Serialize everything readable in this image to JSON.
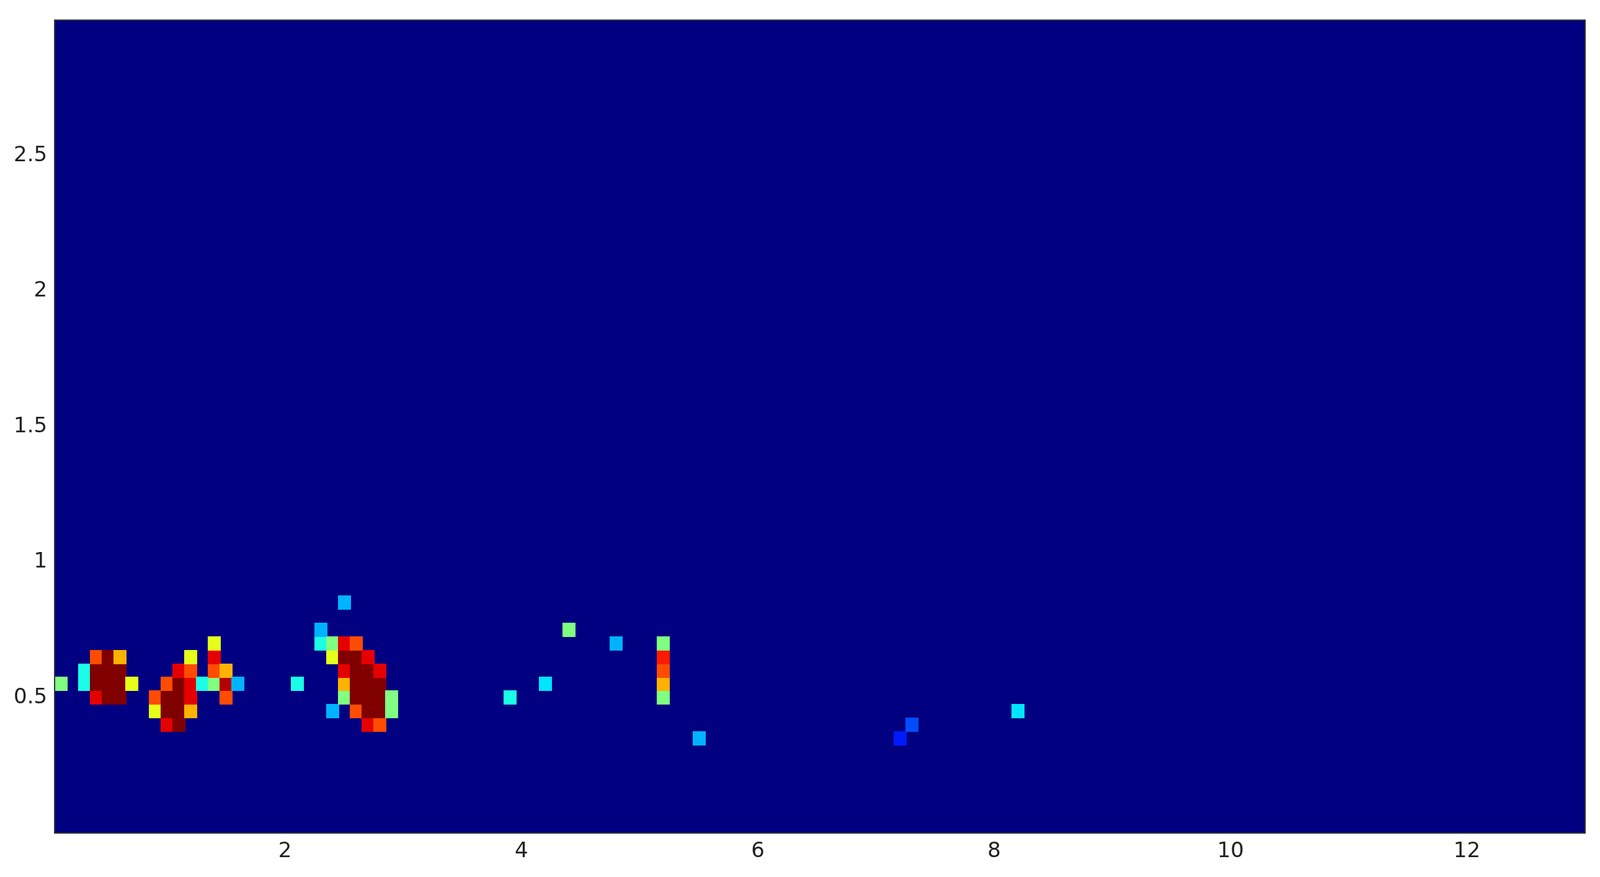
{
  "chart_data": {
    "type": "heatmap",
    "xlim": [
      0.05,
      13
    ],
    "xticks": [
      2,
      4,
      6,
      8,
      10,
      12
    ],
    "ylim": [
      0,
      3
    ],
    "yticks": [
      0.5,
      1,
      1.5,
      2,
      2.5
    ],
    "zlim": [
      0,
      1
    ],
    "cell_width": 0.1,
    "cell_height": 0.05,
    "grid": false,
    "cells": [
      [
        0.1,
        0.55,
        0.5
      ],
      [
        0.3,
        0.55,
        0.4
      ],
      [
        0.3,
        0.6,
        0.4
      ],
      [
        0.4,
        0.5,
        0.9
      ],
      [
        0.4,
        0.55,
        1
      ],
      [
        0.4,
        0.6,
        1
      ],
      [
        0.4,
        0.65,
        0.8
      ],
      [
        0.5,
        0.5,
        1
      ],
      [
        0.5,
        0.55,
        1
      ],
      [
        0.5,
        0.6,
        1
      ],
      [
        0.5,
        0.65,
        1
      ],
      [
        0.6,
        0.5,
        1
      ],
      [
        0.6,
        0.55,
        1
      ],
      [
        0.6,
        0.6,
        1
      ],
      [
        0.6,
        0.65,
        0.7
      ],
      [
        0.7,
        0.55,
        0.6
      ],
      [
        0.9,
        0.45,
        0.6
      ],
      [
        0.9,
        0.5,
        0.8
      ],
      [
        1.0,
        0.4,
        0.9
      ],
      [
        1.0,
        0.45,
        1
      ],
      [
        1.0,
        0.5,
        1
      ],
      [
        1.0,
        0.55,
        0.8
      ],
      [
        1.1,
        0.4,
        1
      ],
      [
        1.1,
        0.45,
        1
      ],
      [
        1.1,
        0.5,
        1
      ],
      [
        1.1,
        0.55,
        1
      ],
      [
        1.1,
        0.6,
        0.9
      ],
      [
        1.2,
        0.45,
        0.7
      ],
      [
        1.2,
        0.5,
        0.9
      ],
      [
        1.2,
        0.55,
        0.9
      ],
      [
        1.2,
        0.6,
        0.8
      ],
      [
        1.2,
        0.65,
        0.6
      ],
      [
        1.3,
        0.55,
        0.4
      ],
      [
        1.4,
        0.55,
        0.5
      ],
      [
        1.4,
        0.6,
        0.8
      ],
      [
        1.4,
        0.65,
        0.9
      ],
      [
        1.4,
        0.7,
        0.6
      ],
      [
        1.5,
        0.5,
        0.8
      ],
      [
        1.5,
        0.55,
        0.95
      ],
      [
        1.5,
        0.6,
        0.7
      ],
      [
        1.6,
        0.55,
        0.3
      ],
      [
        2.1,
        0.55,
        0.4
      ],
      [
        2.3,
        0.7,
        0.4
      ],
      [
        2.3,
        0.75,
        0.3
      ],
      [
        2.4,
        0.45,
        0.3
      ],
      [
        2.4,
        0.65,
        0.6
      ],
      [
        2.4,
        0.7,
        0.5
      ],
      [
        2.5,
        0.5,
        0.5
      ],
      [
        2.5,
        0.55,
        0.7
      ],
      [
        2.5,
        0.6,
        0.9
      ],
      [
        2.5,
        0.65,
        1
      ],
      [
        2.5,
        0.7,
        0.9
      ],
      [
        2.5,
        0.85,
        0.3
      ],
      [
        2.6,
        0.45,
        0.8
      ],
      [
        2.6,
        0.5,
        1
      ],
      [
        2.6,
        0.55,
        1
      ],
      [
        2.6,
        0.6,
        1
      ],
      [
        2.6,
        0.65,
        1
      ],
      [
        2.6,
        0.7,
        0.8
      ],
      [
        2.7,
        0.4,
        0.9
      ],
      [
        2.7,
        0.45,
        1
      ],
      [
        2.7,
        0.5,
        1
      ],
      [
        2.7,
        0.55,
        1
      ],
      [
        2.7,
        0.6,
        1
      ],
      [
        2.7,
        0.65,
        0.9
      ],
      [
        2.8,
        0.4,
        0.8
      ],
      [
        2.8,
        0.45,
        1
      ],
      [
        2.8,
        0.5,
        1
      ],
      [
        2.8,
        0.55,
        1
      ],
      [
        2.8,
        0.6,
        0.9
      ],
      [
        2.9,
        0.45,
        0.5
      ],
      [
        2.9,
        0.5,
        0.5
      ],
      [
        3.9,
        0.5,
        0.4
      ],
      [
        4.2,
        0.55,
        0.35
      ],
      [
        4.4,
        0.75,
        0.5
      ],
      [
        4.8,
        0.7,
        0.3
      ],
      [
        5.2,
        0.5,
        0.5
      ],
      [
        5.2,
        0.55,
        0.7
      ],
      [
        5.2,
        0.6,
        0.8
      ],
      [
        5.2,
        0.65,
        0.85
      ],
      [
        5.2,
        0.7,
        0.5
      ],
      [
        5.5,
        0.35,
        0.3
      ],
      [
        7.2,
        0.35,
        0.15
      ],
      [
        7.3,
        0.4,
        0.2
      ],
      [
        8.2,
        0.45,
        0.35
      ]
    ]
  }
}
